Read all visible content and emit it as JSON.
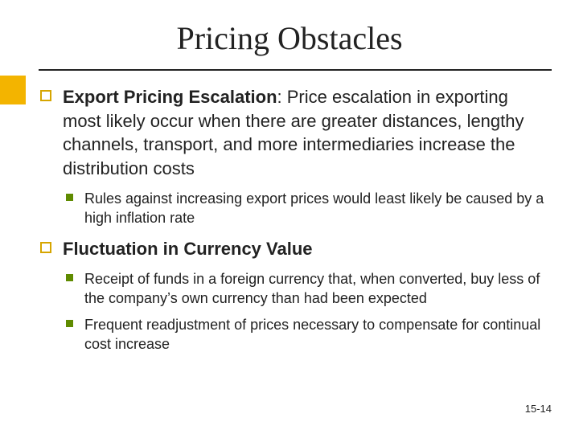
{
  "title": {
    "text": "Pricing Obstacles",
    "fontsize": 40,
    "color": "#222222"
  },
  "accent": {
    "color": "#f3b400"
  },
  "bullets": {
    "l1_square_border": "#d6a500",
    "l2_square_fill": "#5f8b00"
  },
  "content": [
    {
      "bold": "Export Pricing Escalation",
      "rest": ": Price escalation in exporting most likely occur when there are greater distances, lengthy channels, transport, and more intermediaries increase the distribution costs",
      "sub": [
        "Rules against increasing export prices would least likely be caused by a high inflation rate"
      ]
    },
    {
      "bold": "Fluctuation in Currency Value",
      "rest": "",
      "sub": [
        "Receipt of funds in a foreign currency that, when converted, buy less of the company’s own currency than had been expected",
        "Frequent readjustment of prices necessary to compensate for continual cost increase"
      ]
    }
  ],
  "typography": {
    "l1_fontsize": 22,
    "l2_fontsize": 18,
    "footer_fontsize": 13
  },
  "footer": "15-14"
}
